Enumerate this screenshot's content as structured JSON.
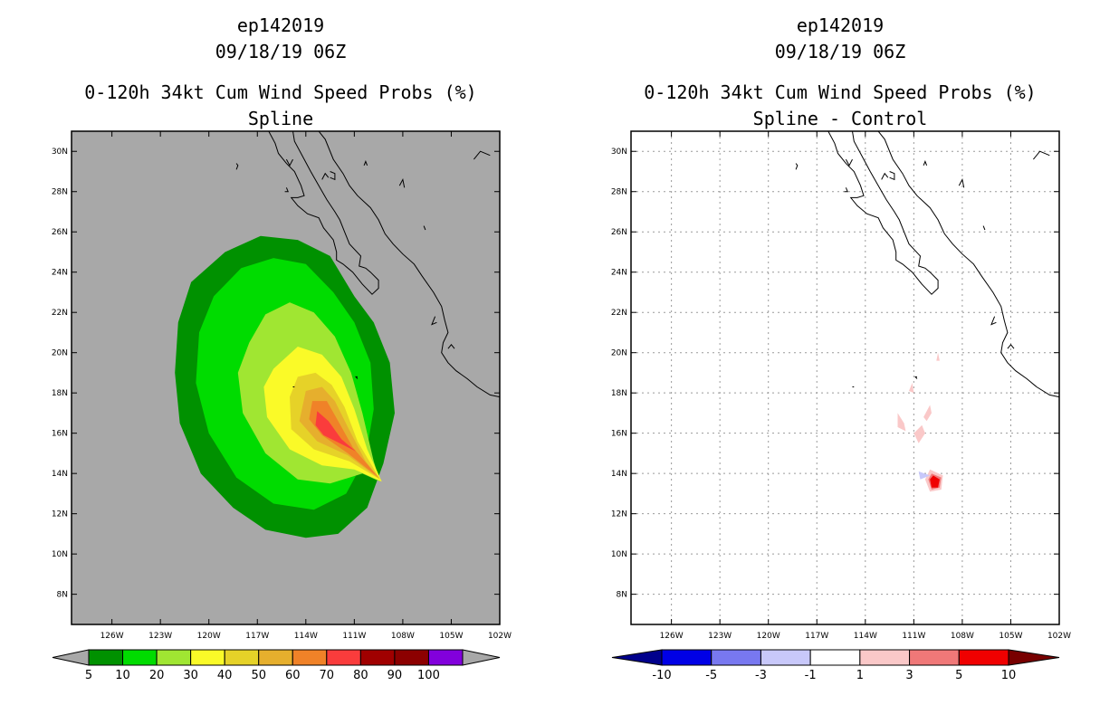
{
  "chart_data": [
    {
      "type": "heatmap",
      "storm_id": "ep142019",
      "datetime": "09/18/19 06Z",
      "title": "0-120h 34kt Cum Wind Speed Probs (%)",
      "subtitle": "Spline",
      "background_color": "#a8a8a8",
      "lon_range": [
        -128.5,
        -102
      ],
      "lat_range": [
        6.5,
        31
      ],
      "x_ticks": [
        "126W",
        "123W",
        "120W",
        "117W",
        "114W",
        "111W",
        "108W",
        "105W",
        "102W"
      ],
      "x_tick_values": [
        -126,
        -123,
        -120,
        -117,
        -114,
        -111,
        -108,
        -105,
        -102
      ],
      "y_ticks": [
        "30N",
        "28N",
        "26N",
        "24N",
        "22N",
        "20N",
        "18N",
        "16N",
        "14N",
        "12N",
        "10N",
        "8N"
      ],
      "y_tick_values": [
        30,
        28,
        26,
        24,
        22,
        20,
        18,
        16,
        14,
        12,
        10,
        8
      ],
      "grid": false,
      "colorbar": {
        "labels": [
          "5",
          "10",
          "20",
          "30",
          "40",
          "50",
          "60",
          "70",
          "80",
          "90",
          "100"
        ],
        "colors": [
          "#009100",
          "#00dc00",
          "#a0e632",
          "#fafa28",
          "#e6d228",
          "#e6af2d",
          "#f08228",
          "#fa3c3c",
          "#a00000",
          "#8c0000",
          "#8200dc"
        ],
        "end_color": "#a8a8a8"
      },
      "contours": [
        {
          "level": 5,
          "color": "#009100",
          "points": [
            [
              -121.1,
              23.5
            ],
            [
              -119.0,
              25.0
            ],
            [
              -116.8,
              25.8
            ],
            [
              -114.5,
              25.6
            ],
            [
              -112.5,
              24.8
            ],
            [
              -111.0,
              22.8
            ],
            [
              -109.8,
              21.5
            ],
            [
              -108.8,
              19.5
            ],
            [
              -108.5,
              17.0
            ],
            [
              -109.2,
              14.5
            ],
            [
              -110.2,
              12.3
            ],
            [
              -112.0,
              11.0
            ],
            [
              -114.0,
              10.8
            ],
            [
              -116.5,
              11.2
            ],
            [
              -118.5,
              12.3
            ],
            [
              -120.5,
              14.0
            ],
            [
              -121.8,
              16.5
            ],
            [
              -122.1,
              19.0
            ],
            [
              -121.9,
              21.5
            ]
          ]
        },
        {
          "level": 10,
          "color": "#00dc00",
          "points": [
            [
              -119.7,
              22.8
            ],
            [
              -118.0,
              24.2
            ],
            [
              -116.0,
              24.7
            ],
            [
              -114.0,
              24.4
            ],
            [
              -112.3,
              23.0
            ],
            [
              -111.0,
              21.5
            ],
            [
              -110.0,
              19.5
            ],
            [
              -109.8,
              17.2
            ],
            [
              -110.3,
              14.8
            ],
            [
              -111.5,
              13.0
            ],
            [
              -113.5,
              12.2
            ],
            [
              -116.0,
              12.5
            ],
            [
              -118.3,
              13.8
            ],
            [
              -120.0,
              16.0
            ],
            [
              -120.8,
              18.5
            ],
            [
              -120.6,
              21.0
            ]
          ]
        },
        {
          "level": 20,
          "color": "#a0e632",
          "points": [
            [
              -117.5,
              20.5
            ],
            [
              -116.5,
              21.9
            ],
            [
              -115.0,
              22.5
            ],
            [
              -113.5,
              22.0
            ],
            [
              -112.2,
              20.8
            ],
            [
              -111.2,
              19.0
            ],
            [
              -110.5,
              17.0
            ],
            [
              -109.8,
              14.6
            ],
            [
              -109.4,
              13.6
            ],
            [
              -110.5,
              14.0
            ],
            [
              -112.5,
              13.5
            ],
            [
              -114.5,
              13.7
            ],
            [
              -116.5,
              15.0
            ],
            [
              -117.9,
              17.0
            ],
            [
              -118.2,
              19.0
            ]
          ]
        },
        {
          "level": 30,
          "color": "#fafa28",
          "points": [
            [
              -116.0,
              19.2
            ],
            [
              -114.5,
              20.3
            ],
            [
              -113.0,
              19.9
            ],
            [
              -111.8,
              18.8
            ],
            [
              -111.0,
              17.2
            ],
            [
              -110.2,
              15.2
            ],
            [
              -109.3,
              13.6
            ],
            [
              -111.0,
              14.2
            ],
            [
              -113.0,
              14.4
            ],
            [
              -115.0,
              15.2
            ],
            [
              -116.4,
              16.8
            ],
            [
              -116.6,
              18.3
            ]
          ]
        },
        {
          "level": 40,
          "color": "#e6d228",
          "points": [
            [
              -114.5,
              18.8
            ],
            [
              -113.4,
              19.0
            ],
            [
              -112.4,
              18.4
            ],
            [
              -111.6,
              17.3
            ],
            [
              -110.8,
              15.6
            ],
            [
              -109.4,
              13.7
            ],
            [
              -111.3,
              14.6
            ],
            [
              -113.5,
              15.2
            ],
            [
              -114.9,
              16.2
            ],
            [
              -115.0,
              17.8
            ]
          ]
        },
        {
          "level": 50,
          "color": "#e6af2d",
          "points": [
            [
              -114.0,
              18.1
            ],
            [
              -113.0,
              18.3
            ],
            [
              -112.2,
              17.6
            ],
            [
              -111.4,
              16.3
            ],
            [
              -110.3,
              14.6
            ],
            [
              -109.4,
              13.7
            ],
            [
              -111.4,
              14.9
            ],
            [
              -113.3,
              15.6
            ],
            [
              -114.4,
              16.6
            ]
          ]
        },
        {
          "level": 60,
          "color": "#f08228",
          "points": [
            [
              -113.6,
              17.6
            ],
            [
              -112.7,
              17.6
            ],
            [
              -112.0,
              16.6
            ],
            [
              -111.1,
              15.3
            ],
            [
              -109.5,
              13.8
            ],
            [
              -111.4,
              15.0
            ],
            [
              -113.0,
              15.9
            ],
            [
              -113.8,
              16.7
            ]
          ]
        },
        {
          "level": 70,
          "color": "#fa3c3c",
          "points": [
            [
              -113.3,
              17.1
            ],
            [
              -112.6,
              16.6
            ],
            [
              -111.8,
              15.7
            ],
            [
              -110.9,
              15.1
            ],
            [
              -111.4,
              15.3
            ],
            [
              -112.9,
              15.9
            ],
            [
              -113.4,
              16.4
            ]
          ]
        }
      ]
    },
    {
      "type": "heatmap",
      "storm_id": "ep142019",
      "datetime": "09/18/19 06Z",
      "title": "0-120h 34kt Cum Wind Speed Probs (%)",
      "subtitle": "Spline - Control",
      "background_color": "#ffffff",
      "lon_range": [
        -128.5,
        -102
      ],
      "lat_range": [
        6.5,
        31
      ],
      "x_ticks": [
        "126W",
        "123W",
        "120W",
        "117W",
        "114W",
        "111W",
        "108W",
        "105W",
        "102W"
      ],
      "x_tick_values": [
        -126,
        -123,
        -120,
        -117,
        -114,
        -111,
        -108,
        -105,
        -102
      ],
      "y_ticks": [
        "30N",
        "28N",
        "26N",
        "24N",
        "22N",
        "20N",
        "18N",
        "16N",
        "14N",
        "12N",
        "10N",
        "8N"
      ],
      "y_tick_values": [
        30,
        28,
        26,
        24,
        22,
        20,
        18,
        16,
        14,
        12,
        10,
        8
      ],
      "grid": true,
      "colorbar": {
        "labels": [
          "-10",
          "-5",
          "-3",
          "-1",
          "1",
          "3",
          "5",
          "10"
        ],
        "colors": [
          "#0000e6",
          "#7878f0",
          "#c8c8fa",
          "#ffffff",
          "#fac8c8",
          "#f07878",
          "#f00000"
        ],
        "end_colors": [
          "#00008c",
          "#780000"
        ]
      },
      "contours": [
        {
          "level": 1,
          "color": "#fac8c8",
          "points": [
            [
              -110.0,
              14.2
            ],
            [
              -109.2,
              13.9
            ],
            [
              -109.3,
              13.2
            ],
            [
              -110.0,
              13.1
            ],
            [
              -110.3,
              13.7
            ]
          ]
        },
        {
          "level": 3,
          "color": "#f07878",
          "points": [
            [
              -109.9,
              14.0
            ],
            [
              -109.3,
              13.8
            ],
            [
              -109.4,
              13.3
            ],
            [
              -109.9,
              13.2
            ],
            [
              -110.1,
              13.7
            ]
          ]
        },
        {
          "level": 5,
          "color": "#f00000",
          "points": [
            [
              -109.8,
              13.9
            ],
            [
              -109.4,
              13.7
            ],
            [
              -109.5,
              13.3
            ],
            [
              -109.9,
              13.3
            ],
            [
              -110.0,
              13.7
            ]
          ]
        },
        {
          "level": 1,
          "color": "#fac8c8",
          "points": [
            [
              -111.0,
              16.0
            ],
            [
              -110.5,
              16.4
            ],
            [
              -110.3,
              16.0
            ],
            [
              -110.7,
              15.5
            ]
          ]
        },
        {
          "level": 1,
          "color": "#fac8c8",
          "points": [
            [
              -112.0,
              17.0
            ],
            [
              -111.6,
              16.5
            ],
            [
              -111.5,
              16.1
            ],
            [
              -112.0,
              16.3
            ]
          ]
        },
        {
          "level": 1,
          "color": "#fac8c8",
          "points": [
            [
              -110.4,
              16.8
            ],
            [
              -110.0,
              17.4
            ],
            [
              -109.9,
              17.0
            ],
            [
              -110.2,
              16.6
            ]
          ]
        },
        {
          "level": 1,
          "color": "#fac8c8",
          "points": [
            [
              -111.3,
              18.1
            ],
            [
              -111.1,
              18.5
            ],
            [
              -111.0,
              18.0
            ]
          ]
        },
        {
          "level": 1,
          "color": "#fac8c8",
          "points": [
            [
              -109.6,
              19.6
            ],
            [
              -109.5,
              20.0
            ],
            [
              -109.4,
              19.6
            ]
          ]
        },
        {
          "level": -1,
          "color": "#c8c8fa",
          "points": [
            [
              -110.7,
              14.1
            ],
            [
              -110.0,
              13.9
            ],
            [
              -110.6,
              13.7
            ]
          ]
        }
      ]
    }
  ],
  "coast": [
    [
      [
        -117.1,
        32.5
      ],
      [
        -116.8,
        31.8
      ],
      [
        -116.3,
        31.0
      ],
      [
        -115.9,
        30.4
      ],
      [
        -115.7,
        29.9
      ],
      [
        -115.2,
        29.4
      ],
      [
        -114.7,
        29.0
      ],
      [
        -114.3,
        28.3
      ],
      [
        -114.1,
        27.8
      ],
      [
        -114.5,
        27.7
      ],
      [
        -114.9,
        27.7
      ],
      [
        -114.5,
        27.3
      ],
      [
        -113.9,
        26.9
      ],
      [
        -113.2,
        26.7
      ],
      [
        -112.9,
        26.2
      ],
      [
        -112.3,
        25.6
      ],
      [
        -112.1,
        25.0
      ],
      [
        -112.1,
        24.6
      ],
      [
        -111.7,
        24.4
      ],
      [
        -111.1,
        24.0
      ],
      [
        -110.5,
        23.4
      ],
      [
        -109.9,
        22.9
      ],
      [
        -109.5,
        23.2
      ],
      [
        -109.5,
        23.6
      ],
      [
        -110.0,
        24.0
      ],
      [
        -110.3,
        24.2
      ],
      [
        -110.7,
        24.3
      ],
      [
        -110.6,
        24.8
      ],
      [
        -111.3,
        25.4
      ],
      [
        -111.6,
        26.0
      ],
      [
        -111.9,
        26.6
      ],
      [
        -112.2,
        27.0
      ],
      [
        -112.7,
        27.6
      ],
      [
        -113.2,
        28.3
      ],
      [
        -113.7,
        29.0
      ],
      [
        -114.3,
        29.9
      ],
      [
        -114.7,
        30.5
      ],
      [
        -114.9,
        31.5
      ]
    ],
    [
      [
        -114.9,
        31.6
      ],
      [
        -114.6,
        31.5
      ],
      [
        -114.0,
        31.2
      ],
      [
        -113.3,
        31.1
      ],
      [
        -112.8,
        30.6
      ],
      [
        -112.3,
        29.6
      ],
      [
        -111.7,
        28.9
      ],
      [
        -111.3,
        28.3
      ],
      [
        -110.8,
        27.8
      ],
      [
        -110.0,
        27.2
      ],
      [
        -109.5,
        26.6
      ],
      [
        -109.1,
        25.9
      ],
      [
        -108.6,
        25.4
      ],
      [
        -108.0,
        24.9
      ],
      [
        -107.3,
        24.4
      ],
      [
        -106.8,
        23.8
      ],
      [
        -106.1,
        23.0
      ],
      [
        -105.6,
        22.3
      ],
      [
        -105.4,
        21.6
      ],
      [
        -105.2,
        21.0
      ],
      [
        -105.5,
        20.5
      ],
      [
        -105.6,
        20.0
      ],
      [
        -105.2,
        19.5
      ],
      [
        -104.7,
        19.1
      ],
      [
        -104.0,
        18.7
      ],
      [
        -103.4,
        18.3
      ],
      [
        -102.6,
        17.9
      ],
      [
        -102.0,
        17.8
      ]
    ],
    [
      [
        -115.2,
        29.6
      ],
      [
        -115.0,
        29.3
      ],
      [
        -114.8,
        29.6
      ]
    ],
    [
      [
        -113.0,
        28.6
      ],
      [
        -112.8,
        28.9
      ],
      [
        -112.6,
        28.7
      ]
    ],
    [
      [
        -112.5,
        29.0
      ],
      [
        -112.2,
        28.9
      ],
      [
        -112.2,
        28.6
      ],
      [
        -112.5,
        28.7
      ]
    ],
    [
      [
        -118.3,
        29.1
      ],
      [
        -118.2,
        29.3
      ],
      [
        -118.3,
        29.4
      ]
    ],
    [
      [
        -110.4,
        29.3
      ],
      [
        -110.3,
        29.5
      ],
      [
        -110.2,
        29.3
      ]
    ],
    [
      [
        -115.2,
        28.2
      ],
      [
        -115.1,
        28.0
      ],
      [
        -115.3,
        28.0
      ]
    ],
    [
      [
        -108.2,
        28.3
      ],
      [
        -108.0,
        28.6
      ],
      [
        -107.9,
        28.2
      ]
    ],
    [
      [
        -106.7,
        26.3
      ],
      [
        -106.6,
        26.1
      ]
    ],
    [
      [
        -106.0,
        21.8
      ],
      [
        -106.2,
        21.4
      ],
      [
        -105.9,
        21.5
      ]
    ],
    [
      [
        -105.2,
        20.2
      ],
      [
        -105.0,
        20.4
      ],
      [
        -104.8,
        20.2
      ]
    ],
    [
      [
        -110.8,
        18.8
      ],
      [
        -110.9,
        18.8
      ],
      [
        -110.8,
        18.7
      ]
    ],
    [
      [
        -114.7,
        18.3
      ],
      [
        -114.8,
        18.3
      ]
    ],
    [
      [
        -103.6,
        29.6
      ],
      [
        -103.2,
        30.0
      ],
      [
        -102.6,
        29.8
      ]
    ]
  ]
}
